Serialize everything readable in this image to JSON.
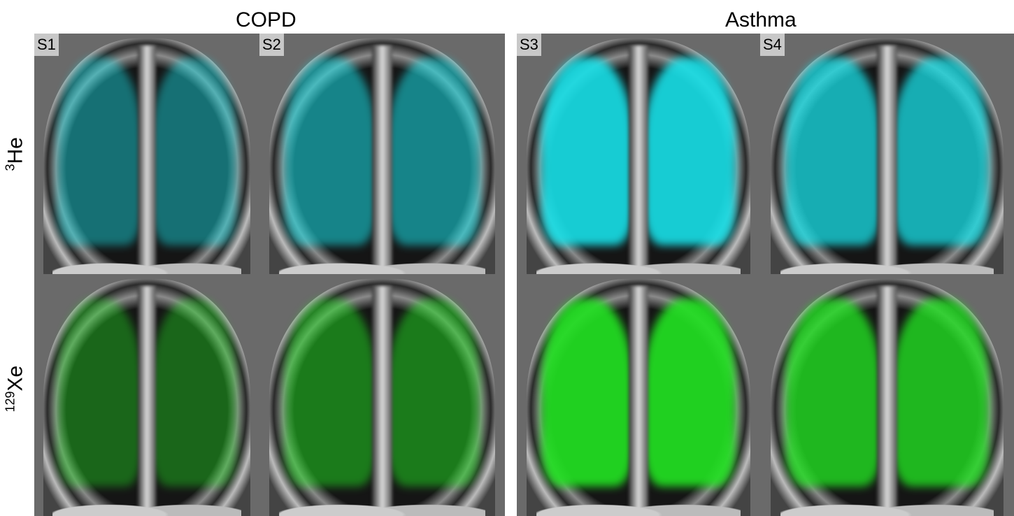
{
  "groups": [
    {
      "title": "COPD"
    },
    {
      "title": "Asthma"
    }
  ],
  "rows": [
    {
      "label_sup": "3",
      "label": "He",
      "color": "#18e0e8"
    },
    {
      "label_sup": "129",
      "label": "Xe",
      "color": "#22e022"
    }
  ],
  "subjects": [
    "S1",
    "S2",
    "S3",
    "S4"
  ]
}
